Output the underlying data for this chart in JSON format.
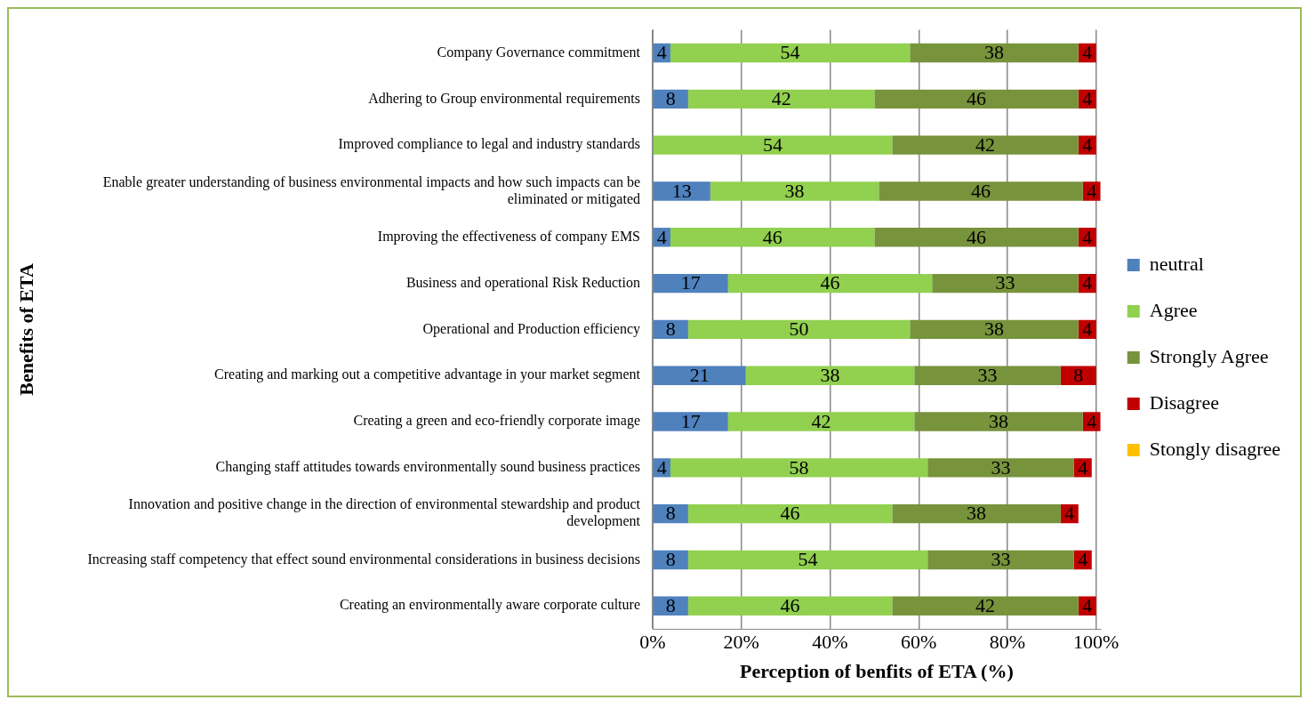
{
  "chart_data": {
    "type": "bar",
    "orientation": "horizontal",
    "stacked": true,
    "data_labels": true,
    "grid": "x",
    "legend": "right",
    "xlabel": "Perception of benfits of ETA (%)",
    "ylabel": "Benefits of ETA",
    "xlim": [
      0,
      101
    ],
    "xticks": [
      {
        "value": 0,
        "label": "0%"
      },
      {
        "value": 20,
        "label": "20%"
      },
      {
        "value": 40,
        "label": "40%"
      },
      {
        "value": 60,
        "label": "60%"
      },
      {
        "value": 80,
        "label": "80%"
      },
      {
        "value": 100,
        "label": "100%"
      }
    ],
    "categories": [
      "Company Governance commitment",
      "Adhering to Group environmental requirements",
      "Improved compliance to legal and industry standards",
      "Enable greater understanding of business environmental impacts and how such impacts can be eliminated or mitigated",
      "Improving the effectiveness of company EMS",
      "Business and operational Risk Reduction",
      "Operational and Production efficiency",
      "Creating and marking out a competitive advantage in your market segment",
      "Creating a green and eco-friendly corporate image",
      "Changing staff attitudes towards environmentally sound business practices",
      "Innovation and positive change in the direction of environmental stewardship and product development",
      "Increasing staff competency that effect sound environmental considerations in business decisions",
      "Creating an environmentally aware corporate culture"
    ],
    "series": [
      {
        "name": "neutral",
        "color": "#4f81bd",
        "values": [
          4,
          8,
          null,
          13,
          4,
          17,
          8,
          21,
          17,
          4,
          8,
          8,
          8
        ]
      },
      {
        "name": "Agree",
        "color": "#92d050",
        "values": [
          54,
          42,
          54,
          38,
          46,
          46,
          50,
          38,
          42,
          58,
          46,
          54,
          46
        ]
      },
      {
        "name": "Strongly Agree",
        "color": "#77933c",
        "values": [
          38,
          46,
          42,
          46,
          46,
          33,
          38,
          33,
          38,
          33,
          38,
          33,
          42
        ]
      },
      {
        "name": "Disagree",
        "color": "#c00000",
        "values": [
          4,
          4,
          4,
          4,
          4,
          4,
          4,
          8,
          4,
          4,
          4,
          4,
          4
        ]
      },
      {
        "name": "Stongly disagree",
        "color": "#ffc000",
        "values": [
          null,
          null,
          null,
          null,
          null,
          null,
          null,
          null,
          null,
          null,
          null,
          null,
          null
        ]
      }
    ]
  }
}
